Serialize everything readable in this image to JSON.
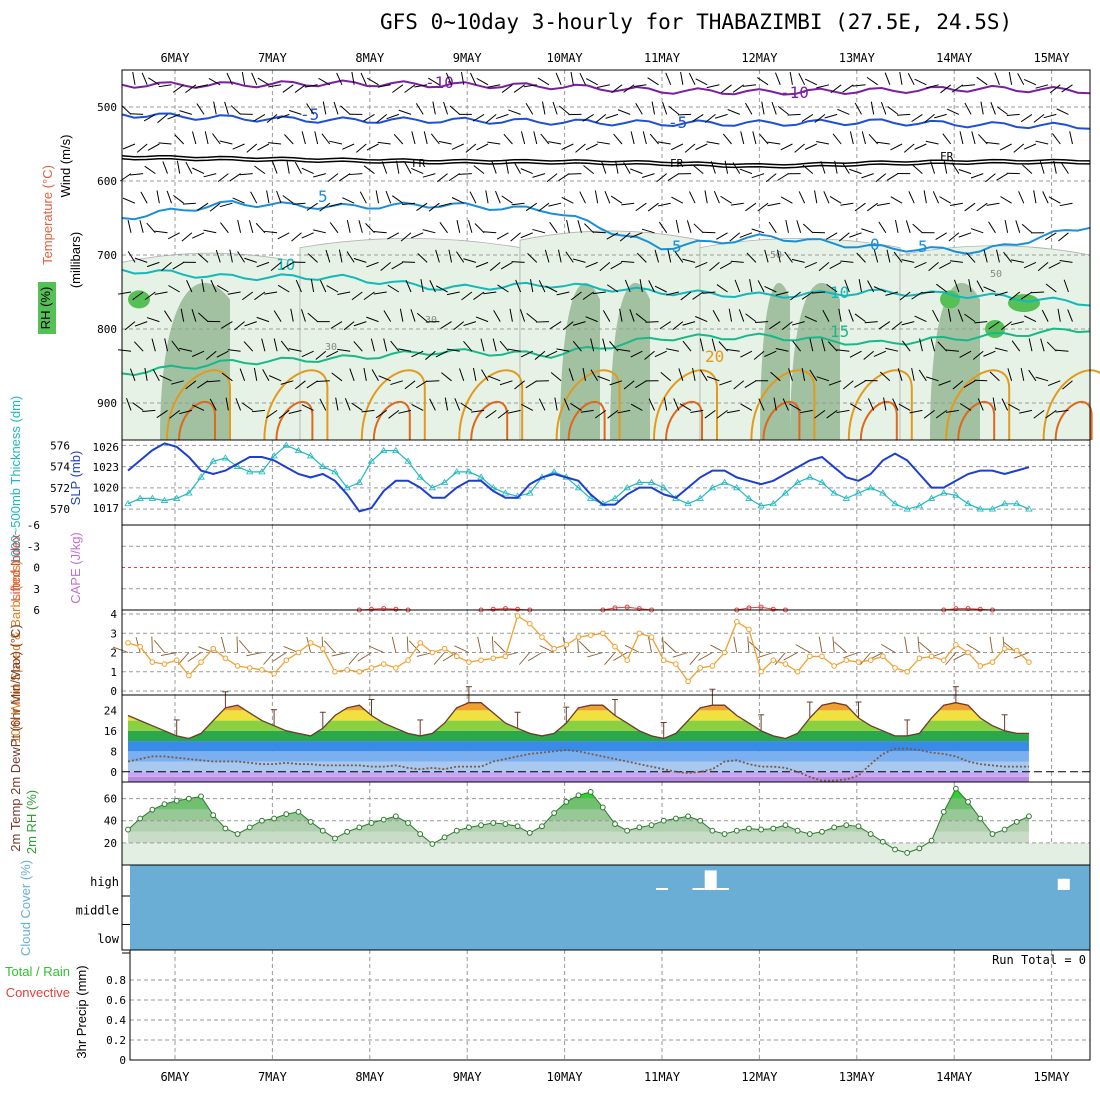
{
  "title": "GFS 0~10day 3-hourly for THABAZIMBI (27.5E, 24.5S)",
  "colors": {
    "frame": "#000000",
    "grid": "#9a9a9a",
    "rh_fill1": "#e6f2e6",
    "rh_fill2": "#b5d6b5",
    "rh_fill3": "#89b089",
    "rh_fill4": "#55c055",
    "temp_m10": "#7b1fa2",
    "temp_m5": "#1e4fd8",
    "temp_5": "#1a8fd8",
    "temp_10": "#13b8b8",
    "temp_15": "#17b98a",
    "temp_20": "#e39a1c",
    "temp_25": "#e0681c",
    "slp": "#1d3fd0",
    "thick": "#20b8c0",
    "li": "#e04040",
    "wind": "#f0a030",
    "barb": "#8a5a2a",
    "dew": "#7a5a4a",
    "rh2m": "#30c030",
    "cloud": "#6aaed6"
  },
  "chart_data": [
    {
      "panel": "upper_air",
      "type": "heatmap",
      "title": "Temperature / RH / Wind vs pressure",
      "ylabel_wind": "Wind (m/s)",
      "ylabel_temp": "Temperature (°C)",
      "ylabel_rh": "RH (%)",
      "ylabel_pressure": "(millibars)",
      "y_ticks": [
        "500",
        "600",
        "700",
        "800",
        "900"
      ],
      "ylim": [
        450,
        950
      ],
      "x_days": [
        "6MAY",
        "7MAY",
        "8MAY",
        "9MAY",
        "10MAY",
        "11MAY",
        "12MAY",
        "13MAY",
        "14MAY",
        "15MAY"
      ],
      "contour_labels": {
        "m10": "-10",
        "m5": "-5",
        "fr": "FR",
        "p5": "5",
        "p10": "10",
        "p15": "15",
        "p20": "20",
        "rh30": "30",
        "rh50": "50",
        "zero": "0"
      },
      "isotherms": [
        {
          "name": "-10",
          "pressure": [
            470,
            470,
            468,
            470,
            472,
            478,
            480,
            478,
            475,
            478
          ]
        },
        {
          "name": "-5",
          "pressure": [
            510,
            515,
            518,
            518,
            520,
            522,
            522,
            520,
            524,
            526
          ]
        },
        {
          "name": "FR",
          "pressure": [
            570,
            572,
            574,
            576,
            576,
            578,
            582,
            578,
            576,
            576
          ]
        },
        {
          "name": "5",
          "pressure": [
            650,
            630,
            635,
            632,
            640,
            690,
            675,
            690,
            695,
            660
          ]
        },
        {
          "name": "10",
          "pressure": [
            720,
            730,
            730,
            745,
            740,
            750,
            755,
            750,
            755,
            765
          ]
        },
        {
          "name": "15",
          "pressure": [
            860,
            845,
            840,
            830,
            835,
            812,
            810,
            820,
            810,
            800
          ]
        }
      ]
    },
    {
      "panel": "slp_thickness",
      "type": "line",
      "ylabel_left": "1000~500mb Thickness (dm)",
      "ylabel_right": "SLP (mb)",
      "y_ticks_left": [
        "576",
        "574",
        "572",
        "570"
      ],
      "y_ticks_right": [
        "1026",
        "1023",
        "1020",
        "1017"
      ],
      "ylim_left": [
        568.5,
        576.5
      ],
      "ylim_right": [
        1014.5,
        1027
      ],
      "series": [
        {
          "name": "SLP",
          "values": [
            1022.5,
            1024,
            1025.5,
            1026.5,
            1026,
            1024.5,
            1022.5,
            1022,
            1022.5,
            1023.5,
            1024.5,
            1024.5,
            1024,
            1023,
            1022,
            1021.5,
            1022,
            1021,
            1019,
            1016.5,
            1017,
            1019.5,
            1021,
            1021,
            1020,
            1018.5,
            1018.5,
            1020,
            1021,
            1021,
            1019.5,
            1018.5,
            1018.5,
            1020.5,
            1021.5,
            1022,
            1021.5,
            1021,
            1019,
            1017.5,
            1017.5,
            1019,
            1020,
            1020,
            1019,
            1018.5,
            1020,
            1021.5,
            1022.5,
            1022.5,
            1021.5,
            1021,
            1020.5,
            1021,
            1022,
            1023,
            1024,
            1024.5,
            1023,
            1021.5,
            1021,
            1022,
            1024,
            1025,
            1024,
            1022,
            1020,
            1020,
            1021,
            1022,
            1022.5,
            1022.5,
            1022,
            1022.5,
            1023
          ]
        },
        {
          "name": "Thickness",
          "values": [
            570.5,
            571,
            571,
            570.8,
            571,
            571.5,
            573,
            574.5,
            574.8,
            574,
            573.5,
            573.5,
            575,
            576,
            575.5,
            575,
            574,
            573.5,
            572,
            572.5,
            574.5,
            575.5,
            575.5,
            574.5,
            573,
            572,
            572.5,
            573.5,
            573.5,
            573,
            572,
            571.5,
            571.2,
            571.5,
            573,
            573.5,
            573,
            572,
            571,
            570.5,
            571,
            572,
            572.5,
            572.5,
            572,
            571,
            570.5,
            571,
            572,
            572.5,
            572,
            571,
            570.3,
            570.5,
            571.5,
            572.5,
            573,
            572.5,
            571.5,
            571,
            571.5,
            572,
            571.5,
            570.5,
            570,
            570.3,
            571,
            571.5,
            571.3,
            570.5,
            570,
            570,
            570.5,
            570.5,
            570
          ]
        }
      ]
    },
    {
      "panel": "stability",
      "type": "line",
      "ylabel_li": "Lifted Index",
      "ylabel_cape": "CAPE (J/kg)",
      "y_ticks": [
        "-6",
        "-3",
        "0",
        "3",
        "6"
      ],
      "ylim": [
        -6,
        6
      ],
      "series": [
        {
          "name": "LI",
          "values": [
            6,
            6,
            6,
            6,
            6,
            6,
            6,
            6,
            6,
            6,
            6,
            6,
            6,
            6,
            6,
            6,
            6,
            6,
            6,
            6,
            5.9,
            5.8,
            5.9,
            6,
            6,
            6,
            6,
            6,
            6,
            6,
            5.9,
            5.8,
            5.9,
            6,
            6,
            6,
            6,
            6,
            6,
            6,
            5.7,
            5.6,
            5.8,
            6,
            6,
            6,
            6,
            6,
            6,
            6,
            6,
            5.7,
            5.6,
            5.9,
            6,
            6,
            6,
            6,
            6,
            6,
            6,
            6,
            6,
            6,
            6,
            6,
            6,
            6,
            5.8,
            5.8,
            5.9,
            6,
            6,
            6,
            6
          ]
        }
      ]
    },
    {
      "panel": "wind10m",
      "type": "line",
      "ylabel": "10m Wind Speed & Barbs (m/s)",
      "y_ticks": [
        "4",
        "3",
        "2",
        "1",
        "0"
      ],
      "ylim": [
        0,
        4
      ],
      "series": [
        {
          "name": "Speed",
          "values": [
            2.5,
            2.3,
            1.5,
            1.4,
            1.6,
            0.8,
            1.5,
            2.2,
            1.7,
            1.3,
            1.2,
            1.1,
            0.9,
            1.6,
            2.0,
            2.5,
            2.2,
            1.0,
            1.1,
            1.0,
            1.2,
            1.4,
            1.2,
            1.6,
            2.5,
            2.0,
            2.2,
            1.8,
            1.5,
            1.6,
            1.7,
            1.8,
            3.9,
            3.5,
            2.8,
            2.2,
            2.4,
            2.8,
            2.9,
            3.0,
            2.3,
            1.6,
            3.0,
            2.8,
            1.6,
            1.4,
            0.5,
            1.2,
            1.3,
            2.0,
            3.6,
            3.2,
            1.0,
            1.6,
            1.4,
            1.0,
            1.8,
            1.8,
            1.3,
            1.6,
            1.5,
            1.6,
            1.8,
            1.2,
            1.0,
            1.7,
            1.8,
            1.6,
            2.4,
            2.0,
            1.3,
            1.5,
            2.2,
            2.1,
            1.5
          ]
        }
      ]
    },
    {
      "panel": "temp2m",
      "type": "area",
      "ylabel": "2m Temp 2m DewPt (6hr Min/Max) (°C)",
      "y_ticks": [
        "24",
        "16",
        "8",
        "0"
      ],
      "ylim": [
        -4,
        30
      ],
      "series": [
        {
          "name": "Temp",
          "values": [
            22,
            20,
            18,
            16,
            14,
            13,
            15,
            20,
            25,
            26,
            23,
            20,
            18,
            16,
            15,
            14,
            17,
            22,
            25,
            26,
            22,
            19,
            17,
            15,
            14,
            15,
            19,
            25,
            27,
            27,
            23,
            19,
            17,
            15,
            14,
            15,
            19,
            25,
            26,
            26,
            22,
            19,
            16,
            14,
            13,
            15,
            20,
            25,
            26,
            26,
            22,
            19,
            16,
            14,
            13,
            15,
            21,
            26,
            27,
            26,
            21,
            18,
            16,
            14,
            14,
            15,
            21,
            26,
            27,
            26,
            21,
            18,
            16,
            15,
            15
          ]
        },
        {
          "name": "DewPt",
          "values": [
            4,
            5,
            6,
            6,
            5.5,
            5,
            4.5,
            4,
            4,
            4,
            3.5,
            3,
            3,
            3.5,
            3,
            3,
            2.5,
            2.5,
            2.5,
            2.5,
            2,
            2,
            2.5,
            1.5,
            1,
            1.5,
            1,
            2,
            2,
            2,
            4,
            5,
            6,
            7,
            7.5,
            8,
            8.5,
            8,
            7,
            6,
            5,
            4,
            3,
            2,
            1,
            0,
            -0.5,
            0,
            1,
            4,
            4.5,
            3,
            2,
            2,
            1.5,
            0,
            -2,
            -3.5,
            -3.5,
            -3,
            -1.5,
            3,
            7,
            9,
            9,
            8.5,
            7.5,
            7,
            6,
            4,
            3,
            2.5,
            2,
            2,
            2
          ]
        }
      ]
    },
    {
      "panel": "rh2m",
      "type": "area",
      "ylabel": "2m RH (%)",
      "y_ticks": [
        "60",
        "40",
        "20"
      ],
      "ylim": [
        0,
        75
      ],
      "series": [
        {
          "name": "RH",
          "values": [
            32,
            42,
            50,
            55,
            58,
            60,
            62,
            45,
            33,
            28,
            34,
            40,
            42,
            46,
            48,
            39,
            31,
            24,
            30,
            34,
            38,
            41,
            44,
            38,
            28,
            19,
            25,
            31,
            34,
            36,
            38,
            37,
            35,
            29,
            35,
            47,
            57,
            63,
            66,
            52,
            37,
            31,
            34,
            36,
            40,
            42,
            44,
            40,
            31,
            28,
            31,
            33,
            32,
            33,
            36,
            31,
            28,
            30,
            34,
            36,
            35,
            28,
            21,
            14,
            11,
            15,
            22,
            48,
            69,
            57,
            42,
            28,
            32,
            39,
            44
          ]
        }
      ]
    },
    {
      "panel": "cloud",
      "type": "bar",
      "ylabel": "Cloud Cover (%)",
      "levels": [
        "high",
        "middle",
        "low"
      ],
      "high_clear_bars": [
        {
          "day": "11MAY",
          "hour": 0,
          "value": 3
        },
        {
          "day": "11MAY",
          "hour": 9,
          "value": 5
        },
        {
          "day": "11MAY",
          "hour": 12,
          "value": 70
        },
        {
          "day": "11MAY",
          "hour": 15,
          "value": 5
        },
        {
          "day": "15MAY",
          "hour": 3,
          "value": 40
        }
      ]
    },
    {
      "panel": "precip",
      "type": "bar",
      "ylabel": "3hr Precip (mm)",
      "legend_total": "Total / Rain",
      "legend_conv": "Convective",
      "run_total": "Run Total = 0",
      "y_ticks": [
        "0.8",
        "0.6",
        "0.4",
        "0.2",
        "0"
      ],
      "ylim": [
        0,
        1
      ],
      "values": []
    }
  ]
}
